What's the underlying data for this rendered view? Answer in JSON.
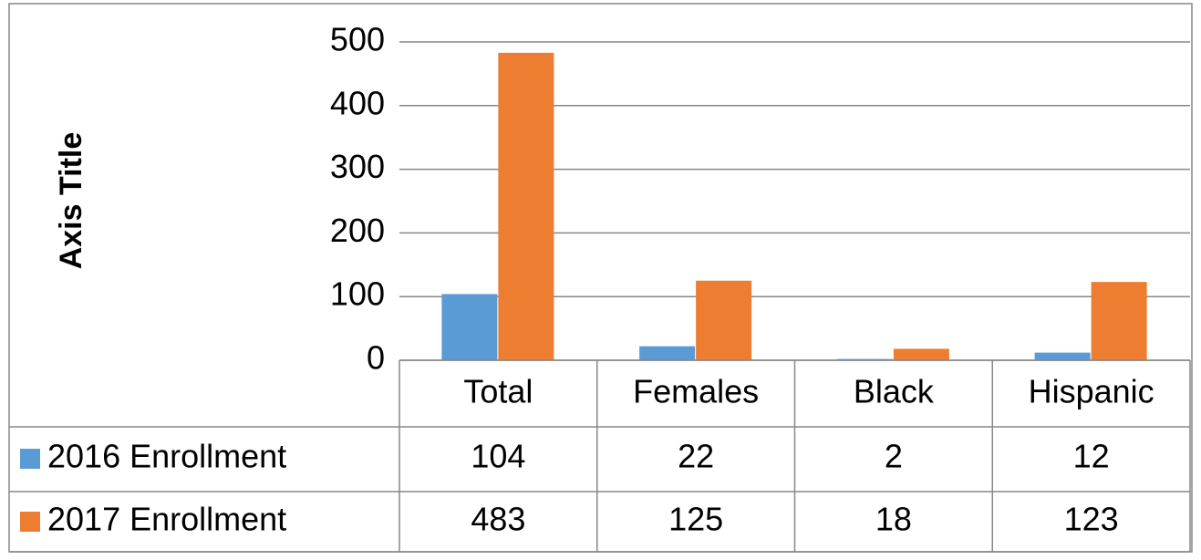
{
  "chart_data": {
    "type": "bar",
    "y_axis_title": "Axis Title",
    "categories": [
      "Total",
      "Females",
      "Black",
      "Hispanic"
    ],
    "series": [
      {
        "name": "2016 Enrollment",
        "color": "#5b9bd5",
        "values": [
          104,
          22,
          2,
          12
        ]
      },
      {
        "name": "2017 Enrollment",
        "color": "#ed7d31",
        "values": [
          483,
          125,
          18,
          123
        ]
      }
    ],
    "ylim": [
      0,
      500
    ],
    "yticks": [
      0,
      100,
      200,
      300,
      400,
      500
    ],
    "grid": true,
    "data_table": true
  }
}
